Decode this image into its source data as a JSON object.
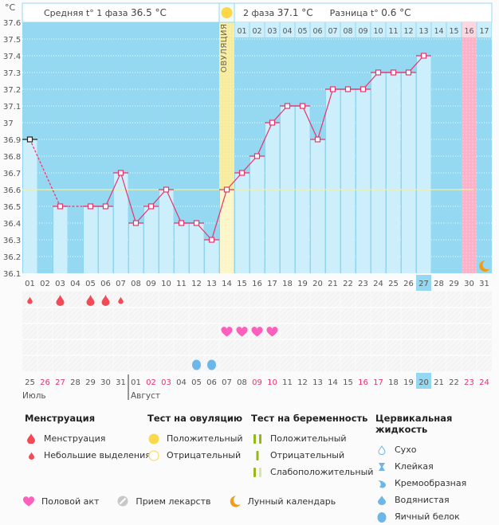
{
  "header": {
    "unit": "°C",
    "phase1_label": "Средняя t° 1 фаза",
    "phase1_value": "36.5 °C",
    "phase2_label": "2 фаза",
    "phase2_value": "37.1 °C",
    "diff_label": "Разница t°",
    "diff_value": "0.6 °C",
    "ovulation_label": "ОВУЛЯЦИЯ"
  },
  "colors": {
    "plot_bg": "#94d8f2",
    "bar": "#cdeefb",
    "line": "#e8336b",
    "ovulation": "#f7ec9e",
    "ovulation_low": "#fbf5c8",
    "pink_day": "#fbb1c8",
    "coverline": "#f5f09a",
    "today": "#94d8f2",
    "weekend_text": "#e8336b"
  },
  "chart_data": {
    "type": "line",
    "title": "",
    "xlabel": "",
    "ylabel": "°C",
    "ylim": [
      36.1,
      37.6
    ],
    "yticks": [
      "37.6",
      "37.5",
      "37.4",
      "37.3",
      "37.2",
      "37.1",
      "37",
      "36.9",
      "36.8",
      "36.7",
      "36.6",
      "36.5",
      "36.4",
      "36.3",
      "36.2",
      "36.1"
    ],
    "grid": true,
    "cycle_days": [
      "01",
      "02",
      "03",
      "04",
      "05",
      "06",
      "07",
      "08",
      "09",
      "10",
      "11",
      "12",
      "13",
      "14",
      "15",
      "16",
      "17",
      "18",
      "19",
      "20",
      "21",
      "22",
      "23",
      "24",
      "25",
      "26",
      "27",
      "28",
      "29",
      "30",
      "31"
    ],
    "phase2_days_header": [
      "01",
      "02",
      "03",
      "04",
      "05",
      "06",
      "07",
      "08",
      "09",
      "10",
      "11",
      "12",
      "13",
      "14",
      "15",
      "16",
      "17"
    ],
    "calendar_dates": [
      "25",
      "26",
      "27",
      "28",
      "29",
      "30",
      "31",
      "01",
      "02",
      "03",
      "04",
      "05",
      "06",
      "07",
      "08",
      "09",
      "10",
      "11",
      "12",
      "13",
      "14",
      "15",
      "16",
      "17",
      "18",
      "19",
      "20",
      "21",
      "22",
      "23",
      "24"
    ],
    "weekend_date_indexes": [
      1,
      2,
      8,
      9,
      15,
      16,
      22,
      23,
      29,
      30
    ],
    "months": [
      {
        "label": "Июль",
        "start_index": 0
      },
      {
        "label": "Август",
        "start_index": 7
      }
    ],
    "series": [
      {
        "name": "Базальная температура",
        "values": [
          36.9,
          null,
          36.5,
          null,
          36.5,
          36.5,
          36.7,
          36.4,
          36.5,
          36.6,
          36.4,
          36.4,
          36.3,
          36.6,
          36.7,
          36.8,
          37.0,
          37.1,
          37.1,
          36.9,
          37.2,
          37.2,
          37.2,
          37.3,
          37.3,
          37.3,
          37.4,
          null,
          null,
          null,
          null
        ]
      }
    ],
    "first_point_marker": "black",
    "coverline": 36.6,
    "ovulation_day": 14,
    "highlight_day": 30,
    "today_day": 27,
    "moon_day": 31,
    "menstruation": [
      {
        "day": 1,
        "type": "spotting"
      },
      {
        "day": 3,
        "type": "menstruation"
      },
      {
        "day": 5,
        "type": "menstruation"
      },
      {
        "day": 6,
        "type": "menstruation"
      },
      {
        "day": 7,
        "type": "spotting"
      }
    ],
    "intercourse_days": [
      14,
      15,
      16,
      17
    ],
    "cervical_fluid": [
      {
        "day": 12,
        "type": "egg-white"
      },
      {
        "day": 13,
        "type": "egg-white"
      }
    ]
  },
  "legend": {
    "menstruation": {
      "title": "Менструация",
      "items": [
        "Менструация",
        "Небольшие выделения"
      ]
    },
    "ovulation_test": {
      "title": "Тест на овуляцию",
      "items": [
        "Положительный",
        "Отрицательный"
      ]
    },
    "pregnancy_test": {
      "title": "Тест на беременность",
      "items": [
        "Положительный",
        "Отрицательный",
        "Слабоположительный"
      ]
    },
    "cervical_fluid": {
      "title": "Цервикальная жидкость",
      "items": [
        "Сухо",
        "Клейкая",
        "Кремообразная",
        "Водянистая",
        "Яичный белок"
      ]
    },
    "bottom": [
      "Половой акт",
      "Прием лекарств",
      "Лунный календарь"
    ]
  }
}
